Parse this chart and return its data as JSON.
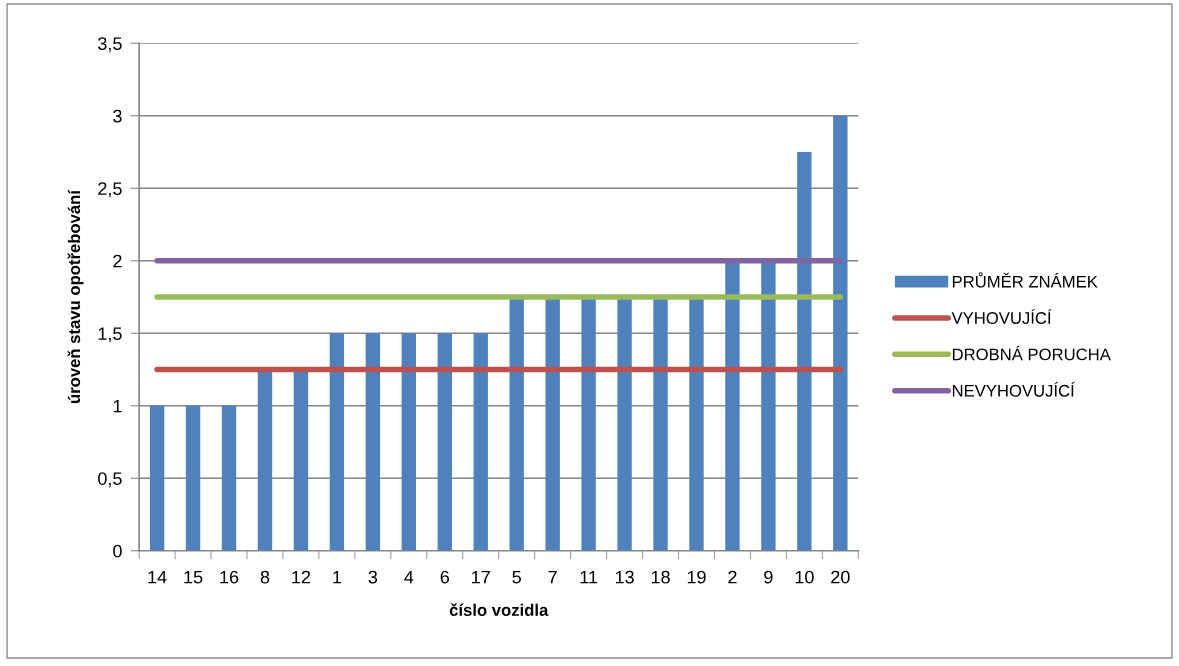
{
  "chart_data": {
    "type": "bar",
    "xlabel": "číslo vozidla",
    "ylabel": "úroveň stavu opotřebování",
    "categories": [
      "14",
      "15",
      "16",
      "8",
      "12",
      "1",
      "3",
      "4",
      "6",
      "17",
      "5",
      "7",
      "11",
      "13",
      "18",
      "19",
      "2",
      "9",
      "10",
      "20"
    ],
    "series": [
      {
        "name": "PRŮMĚR ZNÁMEK",
        "color": "#4f81bd",
        "values": [
          1,
          1,
          1,
          1.25,
          1.25,
          1.5,
          1.5,
          1.5,
          1.5,
          1.5,
          1.75,
          1.75,
          1.75,
          1.75,
          1.75,
          1.75,
          2,
          2,
          2.75,
          3
        ]
      },
      {
        "name": "VYHOVUJÍCÍ",
        "type": "line",
        "color": "#c0504d",
        "values": [
          1.25,
          1.25,
          1.25,
          1.25,
          1.25,
          1.25,
          1.25,
          1.25,
          1.25,
          1.25,
          1.25,
          1.25,
          1.25,
          1.25,
          1.25,
          1.25,
          1.25,
          1.25,
          1.25,
          1.25
        ]
      },
      {
        "name": "DROBNÁ PORUCHA",
        "type": "line",
        "color": "#9bbb59",
        "values": [
          1.75,
          1.75,
          1.75,
          1.75,
          1.75,
          1.75,
          1.75,
          1.75,
          1.75,
          1.75,
          1.75,
          1.75,
          1.75,
          1.75,
          1.75,
          1.75,
          1.75,
          1.75,
          1.75,
          1.75
        ]
      },
      {
        "name": "NEVYHOVUJÍCÍ",
        "type": "line",
        "color": "#8064a2",
        "values": [
          2,
          2,
          2,
          2,
          2,
          2,
          2,
          2,
          2,
          2,
          2,
          2,
          2,
          2,
          2,
          2,
          2,
          2,
          2,
          2
        ]
      }
    ],
    "ylim": [
      0,
      3.5
    ],
    "yticks": [
      0,
      {
        "value": 0.5,
        "label": "0,5"
      },
      1,
      {
        "value": 1.5,
        "label": "1,5"
      },
      2,
      {
        "value": 2.5,
        "label": "2,5"
      },
      3,
      {
        "value": 3.5,
        "label": "3,5"
      }
    ],
    "grid": "y",
    "legend": "right",
    "line_style": "solid",
    "marker": "none"
  }
}
